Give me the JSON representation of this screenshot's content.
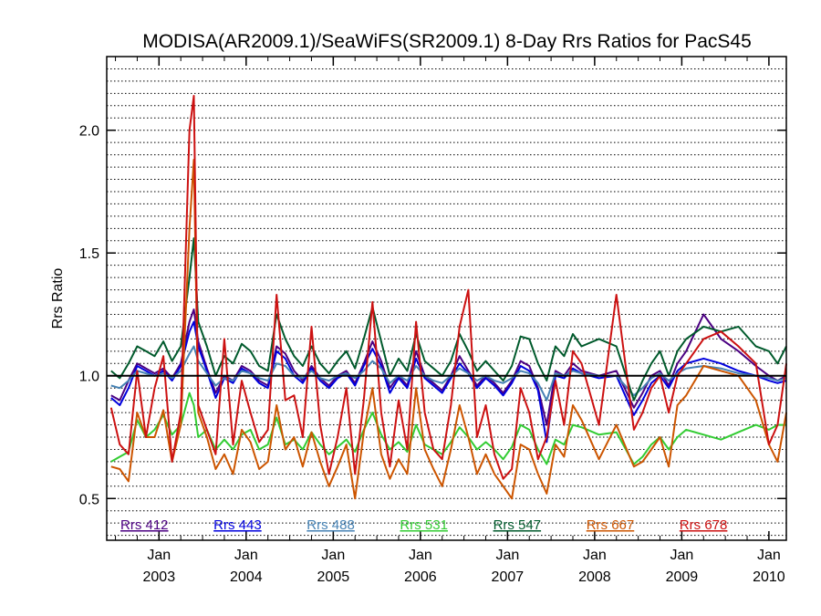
{
  "chart_data": {
    "type": "line",
    "title": "MODISA(AR2009.1)/SeaWiFS(SR2009.1) 8-Day Rrs Ratios for PacS45",
    "ylabel": "Rrs Ratio",
    "xlabel": "",
    "xlim": [
      2002.4,
      2010.2
    ],
    "ylim": [
      0.33,
      2.3
    ],
    "yticks": [
      0.5,
      1.0,
      1.5,
      2.0
    ],
    "ytick_labels": [
      "0.5",
      "1.0",
      "1.5",
      "2.0"
    ],
    "xticks": [
      {
        "value": 2003.0,
        "month": "Jan",
        "year": "2003"
      },
      {
        "value": 2004.0,
        "month": "Jan",
        "year": "2004"
      },
      {
        "value": 2005.0,
        "month": "Jan",
        "year": "2005"
      },
      {
        "value": 2006.0,
        "month": "Jan",
        "year": "2006"
      },
      {
        "value": 2007.0,
        "month": "Jan",
        "year": "2007"
      },
      {
        "value": 2008.0,
        "month": "Jan",
        "year": "2008"
      },
      {
        "value": 2009.0,
        "month": "Jan",
        "year": "2009"
      },
      {
        "value": 2010.0,
        "month": "Jan",
        "year": "2010"
      }
    ],
    "grid": "horizontal dotted",
    "reference_line": 1.0,
    "legend_position": "bottom inside",
    "x": [
      2002.45,
      2002.55,
      2002.65,
      2002.75,
      2002.85,
      2002.95,
      2003.05,
      2003.15,
      2003.25,
      2003.35,
      2003.4,
      2003.45,
      2003.55,
      2003.65,
      2003.75,
      2003.85,
      2003.95,
      2004.05,
      2004.15,
      2004.25,
      2004.35,
      2004.45,
      2004.55,
      2004.65,
      2004.75,
      2004.85,
      2004.95,
      2005.05,
      2005.15,
      2005.25,
      2005.35,
      2005.45,
      2005.55,
      2005.65,
      2005.75,
      2005.85,
      2005.95,
      2006.05,
      2006.15,
      2006.25,
      2006.35,
      2006.45,
      2006.55,
      2006.65,
      2006.75,
      2006.85,
      2006.95,
      2007.05,
      2007.15,
      2007.25,
      2007.35,
      2007.45,
      2007.55,
      2007.65,
      2007.75,
      2007.85,
      2008.05,
      2008.25,
      2008.45,
      2008.55,
      2008.65,
      2008.75,
      2008.85,
      2008.95,
      2009.05,
      2009.25,
      2009.45,
      2009.65,
      2009.85,
      2010.0,
      2010.1,
      2010.2
    ],
    "series": [
      {
        "name": "Rrs_412",
        "color": "#4b0082",
        "values": [
          0.92,
          0.9,
          0.98,
          1.05,
          1.03,
          1.01,
          1.03,
          0.99,
          1.05,
          1.22,
          1.27,
          1.14,
          1.03,
          0.93,
          1.0,
          0.98,
          1.04,
          1.02,
          0.98,
          0.96,
          1.12,
          1.09,
          1.02,
          0.98,
          1.04,
          0.99,
          0.96,
          1.0,
          1.02,
          0.97,
          1.05,
          1.14,
          1.06,
          0.95,
          1.0,
          0.96,
          1.1,
          1.0,
          0.97,
          0.94,
          1.0,
          1.08,
          1.02,
          0.96,
          1.0,
          0.97,
          0.93,
          0.98,
          1.06,
          1.04,
          0.95,
          0.8,
          1.02,
          1.0,
          1.05,
          1.02,
          1.0,
          1.02,
          0.87,
          0.93,
          1.0,
          1.02,
          0.96,
          1.05,
          1.1,
          1.25,
          1.15,
          1.1,
          1.04,
          1.0,
          0.98,
          1.0
        ]
      },
      {
        "name": "Rrs_443",
        "color": "#0000dd",
        "values": [
          0.91,
          0.88,
          0.95,
          1.04,
          1.02,
          1.0,
          1.02,
          0.98,
          1.04,
          1.18,
          1.22,
          1.12,
          1.02,
          0.91,
          0.99,
          0.97,
          1.03,
          1.01,
          0.97,
          0.95,
          1.1,
          1.07,
          1.0,
          0.97,
          1.03,
          0.98,
          0.95,
          0.99,
          1.01,
          0.96,
          1.04,
          1.11,
          1.04,
          0.93,
          0.99,
          0.95,
          1.07,
          0.99,
          0.96,
          0.93,
          0.99,
          1.05,
          1.01,
          0.95,
          0.99,
          0.96,
          0.92,
          0.97,
          1.04,
          1.02,
          0.94,
          0.73,
          1.0,
          0.99,
          1.03,
          1.01,
          0.99,
          1.0,
          0.84,
          0.9,
          0.97,
          1.0,
          0.95,
          1.02,
          1.05,
          1.07,
          1.05,
          1.02,
          1.0,
          0.98,
          0.97,
          0.98
        ]
      },
      {
        "name": "Rrs_488",
        "color": "#4682b4",
        "values": [
          0.96,
          0.95,
          0.98,
          1.02,
          1.01,
          1.0,
          1.01,
          0.99,
          1.02,
          1.09,
          1.12,
          1.06,
          1.01,
          0.96,
          0.99,
          0.98,
          1.02,
          1.01,
          0.99,
          0.98,
          1.05,
          1.04,
          1.0,
          0.99,
          1.02,
          0.99,
          0.98,
          1.0,
          1.01,
          0.99,
          1.02,
          1.06,
          1.03,
          0.97,
          1.0,
          0.98,
          1.04,
          1.0,
          0.98,
          0.97,
          1.0,
          1.03,
          1.01,
          0.98,
          1.0,
          0.98,
          0.97,
          0.99,
          1.02,
          1.01,
          0.97,
          0.9,
          1.01,
          1.0,
          1.02,
          1.01,
          1.0,
          1.0,
          0.92,
          0.95,
          0.99,
          1.01,
          0.98,
          1.01,
          1.03,
          1.04,
          1.03,
          1.01,
          1.0,
          0.99,
          0.98,
          0.99
        ]
      },
      {
        "name": "Rrs_531",
        "color": "#33cc33",
        "values": [
          0.65,
          0.67,
          0.69,
          0.82,
          0.75,
          0.78,
          0.84,
          0.76,
          0.8,
          0.93,
          0.88,
          0.75,
          0.78,
          0.7,
          0.74,
          0.7,
          0.76,
          0.78,
          0.7,
          0.72,
          0.83,
          0.72,
          0.74,
          0.7,
          0.77,
          0.72,
          0.68,
          0.71,
          0.74,
          0.69,
          0.78,
          0.85,
          0.76,
          0.7,
          0.73,
          0.69,
          0.8,
          0.72,
          0.7,
          0.68,
          0.73,
          0.79,
          0.75,
          0.7,
          0.73,
          0.7,
          0.66,
          0.71,
          0.8,
          0.78,
          0.7,
          0.64,
          0.74,
          0.72,
          0.8,
          0.79,
          0.76,
          0.77,
          0.64,
          0.67,
          0.72,
          0.75,
          0.7,
          0.75,
          0.78,
          0.76,
          0.74,
          0.77,
          0.8,
          0.78,
          0.8,
          0.8
        ]
      },
      {
        "name": "Rrs_547",
        "color": "#005a2c",
        "values": [
          1.02,
          0.99,
          1.05,
          1.12,
          1.1,
          1.08,
          1.14,
          1.06,
          1.12,
          1.4,
          1.56,
          1.22,
          1.12,
          1.0,
          1.08,
          1.05,
          1.13,
          1.1,
          1.04,
          1.02,
          1.25,
          1.15,
          1.08,
          1.04,
          1.12,
          1.05,
          1.01,
          1.06,
          1.1,
          1.03,
          1.15,
          1.28,
          1.14,
          1.0,
          1.07,
          1.02,
          1.17,
          1.06,
          1.03,
          1.0,
          1.06,
          1.17,
          1.1,
          1.02,
          1.06,
          1.02,
          0.98,
          1.04,
          1.16,
          1.15,
          1.05,
          0.98,
          1.12,
          1.08,
          1.17,
          1.12,
          1.15,
          1.12,
          0.9,
          0.98,
          1.05,
          1.1,
          1.0,
          1.1,
          1.15,
          1.2,
          1.18,
          1.2,
          1.12,
          1.1,
          1.05,
          1.12
        ]
      },
      {
        "name": "Rrs_667",
        "color": "#cc5500",
        "values": [
          0.63,
          0.62,
          0.57,
          0.85,
          0.75,
          0.75,
          0.86,
          0.65,
          0.8,
          1.6,
          1.88,
          0.85,
          0.75,
          0.62,
          0.68,
          0.6,
          0.78,
          0.73,
          0.62,
          0.65,
          0.88,
          0.7,
          0.75,
          0.63,
          0.77,
          0.65,
          0.55,
          0.63,
          0.72,
          0.5,
          0.77,
          0.95,
          0.68,
          0.58,
          0.66,
          0.6,
          0.95,
          0.7,
          0.62,
          0.55,
          0.7,
          0.88,
          0.75,
          0.6,
          0.68,
          0.6,
          0.55,
          0.5,
          0.72,
          0.7,
          0.6,
          0.52,
          0.72,
          0.67,
          0.88,
          0.82,
          0.66,
          0.8,
          0.63,
          0.65,
          0.7,
          0.75,
          0.63,
          0.88,
          0.92,
          1.04,
          1.02,
          1.0,
          0.9,
          0.72,
          0.65,
          0.85
        ]
      },
      {
        "name": "Rrs_678",
        "color": "#cc1111",
        "values": [
          0.87,
          0.72,
          0.68,
          1.02,
          0.75,
          0.95,
          1.08,
          0.65,
          0.85,
          2.0,
          2.14,
          0.88,
          0.78,
          0.68,
          1.15,
          0.72,
          0.98,
          0.85,
          0.73,
          0.78,
          1.33,
          0.9,
          0.92,
          0.75,
          1.2,
          0.8,
          0.6,
          0.75,
          0.95,
          0.6,
          0.9,
          1.3,
          0.85,
          0.63,
          0.9,
          0.7,
          1.22,
          0.85,
          0.7,
          0.66,
          0.88,
          1.2,
          1.35,
          0.75,
          0.88,
          0.68,
          0.58,
          0.62,
          0.95,
          0.85,
          0.66,
          0.75,
          0.98,
          0.8,
          1.1,
          1.05,
          0.8,
          1.33,
          0.78,
          0.85,
          0.95,
          1.0,
          0.85,
          1.0,
          1.05,
          1.15,
          1.18,
          1.12,
          1.05,
          0.72,
          0.8,
          1.05
        ]
      }
    ]
  }
}
